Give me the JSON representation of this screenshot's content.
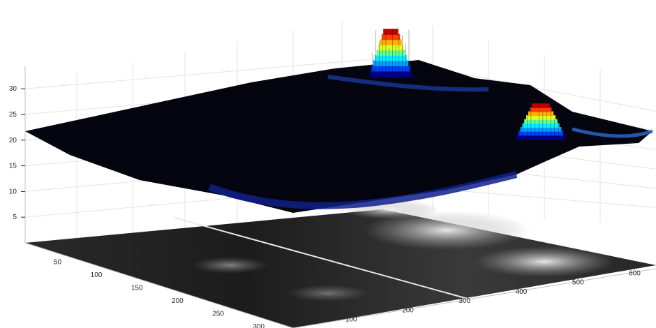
{
  "chart_data": {
    "type": "surface3d",
    "title": "",
    "xlabel": "",
    "ylabel": "",
    "zlabel": "",
    "grid": true,
    "colormap": "jet",
    "base_colormap": "gray",
    "xlim": [
      0,
      640
    ],
    "ylim": [
      0,
      330
    ],
    "zlim": [
      0,
      33
    ],
    "x_ticks": [
      100,
      200,
      300,
      400,
      500,
      600
    ],
    "y_ticks": [
      50,
      100,
      150,
      200,
      250,
      300
    ],
    "z_ticks": [
      5,
      10,
      15,
      20,
      25,
      30
    ],
    "surface_base_level": 20,
    "peaks": [
      {
        "x": 380,
        "y": 80,
        "z": 28
      },
      {
        "x": 600,
        "y": 150,
        "z": 26
      }
    ]
  }
}
